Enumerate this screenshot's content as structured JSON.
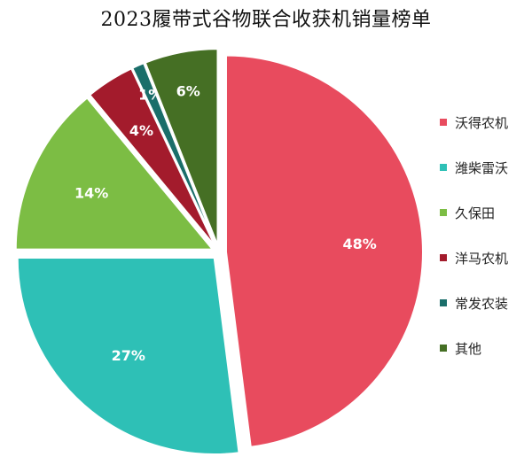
{
  "chart_data": {
    "type": "pie",
    "title": "2023履带式谷物联合收获机销量榜单",
    "slices": [
      {
        "name": "沃得农机",
        "value": 48,
        "label": "48%",
        "color": "#e84b5e"
      },
      {
        "name": "潍柴雷沃",
        "value": 27,
        "label": "27%",
        "color": "#2ec0b6"
      },
      {
        "name": "久保田",
        "value": 14,
        "label": "14%",
        "color": "#7cbd44"
      },
      {
        "name": "洋马农机",
        "value": 4,
        "label": "4%",
        "color": "#a31b2c"
      },
      {
        "name": "常发农装",
        "value": 1,
        "label": "1%",
        "color": "#1a6e6a"
      },
      {
        "name": "其他",
        "value": 6,
        "label": "6%",
        "color": "#456f24"
      }
    ],
    "legend_position": "right"
  }
}
